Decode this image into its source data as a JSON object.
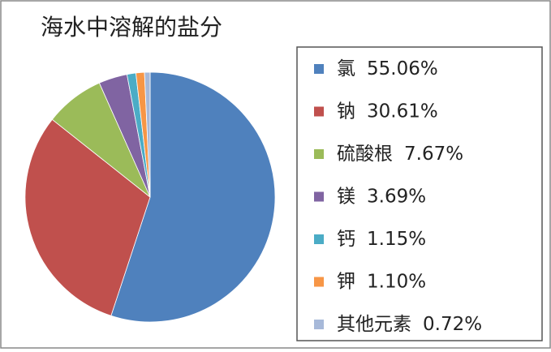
{
  "chart_data": {
    "type": "pie",
    "title": "海水中溶解的盐分",
    "categories": [
      "氯",
      "钠",
      "硫酸根",
      "镁",
      "钙",
      "钾",
      "其他元素"
    ],
    "values": [
      55.06,
      30.61,
      7.67,
      3.69,
      1.15,
      1.1,
      0.72
    ],
    "value_labels": [
      "55.06%",
      "30.61%",
      "7.67%",
      "3.69%",
      "1.15%",
      "1.10%",
      "0.72%"
    ],
    "colors": [
      "#4f81bd",
      "#c0504d",
      "#9bbb59",
      "#8064a2",
      "#4bacc6",
      "#f79646",
      "#a7b9d9"
    ],
    "legend": "right"
  }
}
